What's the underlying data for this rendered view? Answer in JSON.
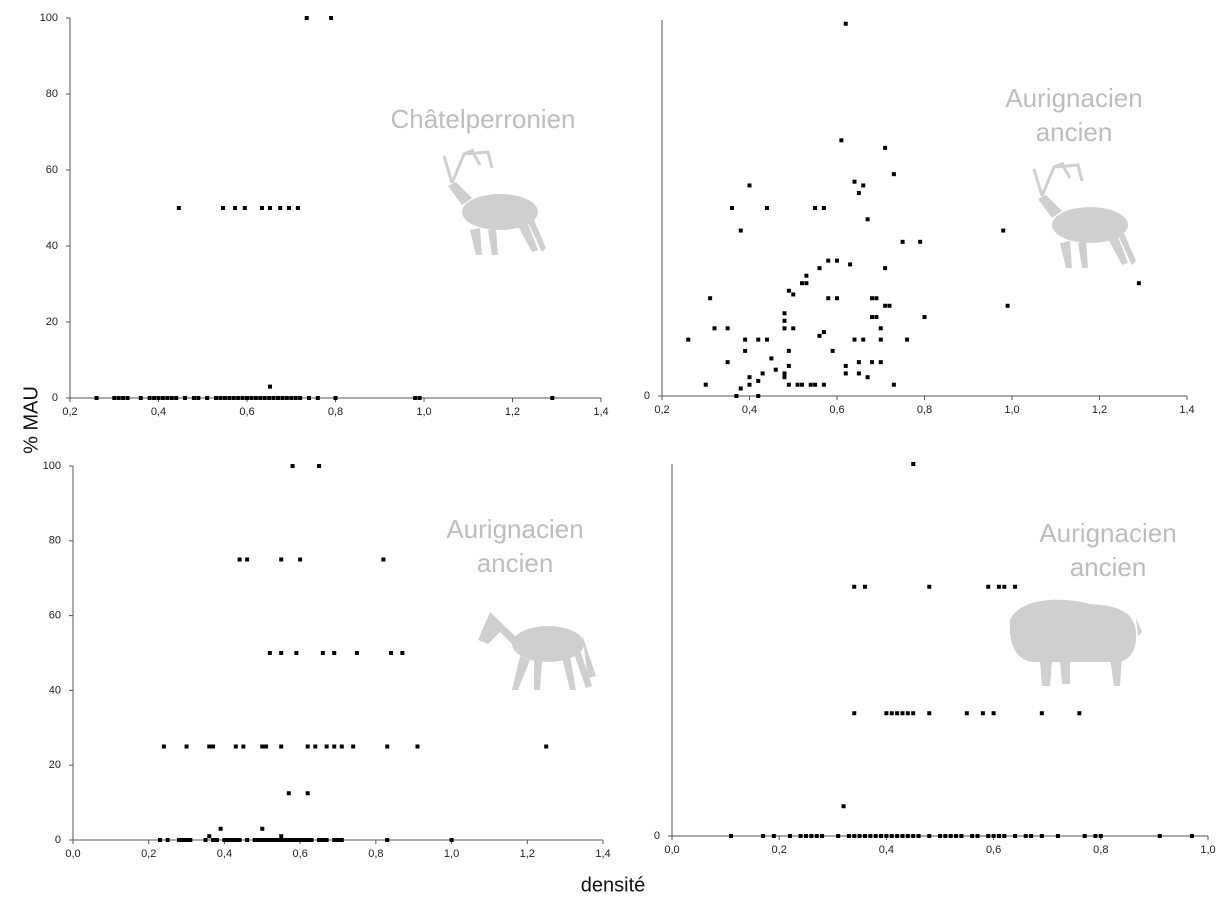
{
  "ylabel": "% MAU",
  "xlabel": "densité",
  "chart_data": [
    {
      "type": "scatter",
      "annotation_lines": [
        "Châtelperronien"
      ],
      "color": "#000000",
      "xlim": [
        0.2,
        1.4
      ],
      "xticks": [
        {
          "value": 0.2,
          "label": "0,2"
        },
        {
          "value": 0.4,
          "label": "0,4"
        },
        {
          "value": 0.6,
          "label": "0,6"
        },
        {
          "value": 0.8,
          "label": "0,8"
        },
        {
          "value": 1.0,
          "label": "1,0"
        },
        {
          "value": 1.2,
          "label": "1,2"
        },
        {
          "value": 1.4,
          "label": "1,4"
        }
      ],
      "ylim": [
        0,
        100
      ],
      "yticks": [
        0,
        20,
        40,
        60,
        80,
        100
      ],
      "x": [
        0.735,
        0.79,
        0.446,
        0.546,
        0.573,
        0.595,
        0.634,
        0.652,
        0.675,
        0.695,
        0.715,
        0.652,
        0.26,
        0.3,
        0.31,
        0.32,
        0.33,
        0.36,
        0.38,
        0.39,
        0.4,
        0.41,
        0.42,
        0.43,
        0.44,
        0.46,
        0.48,
        0.49,
        0.51,
        0.53,
        0.54,
        0.55,
        0.56,
        0.57,
        0.58,
        0.59,
        0.6,
        0.61,
        0.62,
        0.63,
        0.64,
        0.65,
        0.66,
        0.67,
        0.68,
        0.69,
        0.7,
        0.71,
        0.72,
        0.74,
        0.76,
        0.8,
        0.98,
        0.99,
        1.29
      ],
      "values": [
        100,
        100,
        50,
        50,
        50,
        50,
        50,
        50,
        50,
        50,
        50,
        3,
        0,
        0,
        0,
        0,
        0,
        0,
        0,
        0,
        0,
        0,
        0,
        0,
        0,
        0,
        0,
        0,
        0,
        0,
        0,
        0,
        0,
        0,
        0,
        0,
        0,
        0,
        0,
        0,
        0,
        0,
        0,
        0,
        0,
        0,
        0,
        0,
        0,
        0,
        0,
        0,
        0,
        0,
        0
      ]
    },
    {
      "type": "scatter",
      "annotation_lines": [
        "Aurignacien",
        "ancien"
      ],
      "color": "#000000",
      "xlim": [
        0.2,
        1.4
      ],
      "xticks": [
        {
          "value": 0.2,
          "label": "0,2"
        },
        {
          "value": 0.4,
          "label": "0,4"
        },
        {
          "value": 0.6,
          "label": "0,6"
        },
        {
          "value": 0.8,
          "label": "0,8"
        },
        {
          "value": 1.0,
          "label": "1,0"
        },
        {
          "value": 1.2,
          "label": "1,2"
        },
        {
          "value": 1.4,
          "label": "1,4"
        }
      ],
      "ylim": [
        0,
        100
      ],
      "yticks": [
        0
      ],
      "x": [
        0.26,
        0.3,
        0.31,
        0.32,
        0.35,
        0.35,
        0.36,
        0.37,
        0.38,
        0.38,
        0.39,
        0.39,
        0.4,
        0.4,
        0.4,
        0.42,
        0.42,
        0.42,
        0.43,
        0.44,
        0.44,
        0.45,
        0.46,
        0.48,
        0.48,
        0.48,
        0.48,
        0.48,
        0.49,
        0.49,
        0.49,
        0.49,
        0.5,
        0.5,
        0.51,
        0.52,
        0.52,
        0.53,
        0.53,
        0.54,
        0.55,
        0.55,
        0.56,
        0.56,
        0.57,
        0.57,
        0.57,
        0.58,
        0.58,
        0.59,
        0.6,
        0.6,
        0.61,
        0.62,
        0.62,
        0.62,
        0.63,
        0.64,
        0.64,
        0.65,
        0.65,
        0.65,
        0.66,
        0.66,
        0.67,
        0.67,
        0.68,
        0.68,
        0.68,
        0.69,
        0.69,
        0.7,
        0.7,
        0.7,
        0.71,
        0.71,
        0.71,
        0.72,
        0.73,
        0.73,
        0.75,
        0.76,
        0.79,
        0.8,
        0.98,
        0.99,
        1.29
      ],
      "values": [
        15,
        3,
        26,
        18,
        18,
        9,
        50,
        0,
        44,
        2,
        12,
        15,
        56,
        5,
        3,
        15,
        0,
        4,
        6,
        50,
        15,
        10,
        7,
        6,
        5,
        22,
        20,
        18,
        28,
        12,
        8,
        3,
        27,
        18,
        3,
        30,
        3,
        32,
        30,
        3,
        50,
        3,
        16,
        34,
        50,
        3,
        17,
        26,
        36,
        12,
        26,
        36,
        68,
        99,
        8,
        6,
        35,
        57,
        15,
        54,
        9,
        6,
        56,
        15,
        47,
        5,
        26,
        21,
        9,
        26,
        21,
        9,
        18,
        15,
        66,
        34,
        24,
        24,
        59,
        3,
        41,
        15,
        41,
        21,
        44,
        24,
        30
      ]
    },
    {
      "type": "scatter",
      "annotation_lines": [
        "Aurignacien",
        "ancien"
      ],
      "color": "#000000",
      "xlim": [
        0.0,
        1.4
      ],
      "xticks": [
        {
          "value": 0.0,
          "label": "0,0"
        },
        {
          "value": 0.2,
          "label": "0,2"
        },
        {
          "value": 0.4,
          "label": "0,4"
        },
        {
          "value": 0.6,
          "label": "0,6"
        },
        {
          "value": 0.8,
          "label": "0,8"
        },
        {
          "value": 1.0,
          "label": "1,0"
        },
        {
          "value": 1.2,
          "label": "1,2"
        },
        {
          "value": 1.4,
          "label": "1,4"
        }
      ],
      "ylim": [
        0,
        100
      ],
      "yticks": [
        0,
        20,
        40,
        60,
        80,
        100
      ],
      "x": [
        0.58,
        0.65,
        0.44,
        0.46,
        0.55,
        0.6,
        0.82,
        0.52,
        0.55,
        0.59,
        0.66,
        0.69,
        0.75,
        0.84,
        0.87,
        0.24,
        0.3,
        0.36,
        0.37,
        0.43,
        0.45,
        0.5,
        0.51,
        0.55,
        0.62,
        0.64,
        0.67,
        0.69,
        0.71,
        0.74,
        0.83,
        0.91,
        1.25,
        0.57,
        0.62,
        0.39,
        0.5,
        0.36,
        0.55,
        0.23,
        0.25,
        0.28,
        0.29,
        0.3,
        0.31,
        0.35,
        0.37,
        0.38,
        0.4,
        0.41,
        0.42,
        0.43,
        0.44,
        0.46,
        0.48,
        0.49,
        0.5,
        0.51,
        0.52,
        0.53,
        0.54,
        0.55,
        0.56,
        0.57,
        0.58,
        0.59,
        0.6,
        0.61,
        0.62,
        0.63,
        0.65,
        0.66,
        0.67,
        0.69,
        0.7,
        0.71,
        0.83,
        1.0
      ],
      "values": [
        100,
        100,
        75,
        75,
        75,
        75,
        75,
        50,
        50,
        50,
        50,
        50,
        50,
        50,
        50,
        25,
        25,
        25,
        25,
        25,
        25,
        25,
        25,
        25,
        25,
        25,
        25,
        25,
        25,
        25,
        25,
        25,
        25,
        12.5,
        12.5,
        3,
        3,
        1,
        1,
        0,
        0,
        0,
        0,
        0,
        0,
        0,
        0,
        0,
        0,
        0,
        0,
        0,
        0,
        0,
        0,
        0,
        0,
        0,
        0,
        0,
        0,
        0,
        0,
        0,
        0,
        0,
        0,
        0,
        0,
        0,
        0,
        0,
        0,
        0,
        0,
        0,
        0,
        0
      ]
    },
    {
      "type": "scatter",
      "annotation_lines": [
        "Aurignacien",
        "ancien"
      ],
      "color": "#000000",
      "xlim": [
        0.0,
        1.0
      ],
      "xticks": [
        {
          "value": 0.0,
          "label": "0,0"
        },
        {
          "value": 0.2,
          "label": "0,2"
        },
        {
          "value": 0.4,
          "label": "0,4"
        },
        {
          "value": 0.6,
          "label": "0,6"
        },
        {
          "value": 0.8,
          "label": "0,8"
        },
        {
          "value": 1.0,
          "label": "1,0"
        }
      ],
      "ylim": [
        0,
        100
      ],
      "yticks": [
        0
      ],
      "x": [
        0.45,
        0.34,
        0.36,
        0.48,
        0.59,
        0.61,
        0.62,
        0.64,
        0.34,
        0.4,
        0.41,
        0.42,
        0.43,
        0.44,
        0.45,
        0.48,
        0.55,
        0.58,
        0.6,
        0.69,
        0.76,
        0.32,
        0.11,
        0.17,
        0.19,
        0.22,
        0.24,
        0.25,
        0.26,
        0.27,
        0.28,
        0.31,
        0.33,
        0.34,
        0.35,
        0.36,
        0.37,
        0.38,
        0.39,
        0.4,
        0.41,
        0.42,
        0.43,
        0.44,
        0.45,
        0.46,
        0.48,
        0.5,
        0.51,
        0.52,
        0.53,
        0.54,
        0.56,
        0.57,
        0.59,
        0.6,
        0.61,
        0.62,
        0.64,
        0.66,
        0.67,
        0.69,
        0.72,
        0.77,
        0.79,
        0.8,
        0.91,
        0.97
      ],
      "values": [
        100,
        67,
        67,
        67,
        67,
        67,
        67,
        67,
        33,
        33,
        33,
        33,
        33,
        33,
        33,
        33,
        33,
        33,
        33,
        33,
        33,
        8,
        0,
        0,
        0,
        0,
        0,
        0,
        0,
        0,
        0,
        0,
        0,
        0,
        0,
        0,
        0,
        0,
        0,
        0,
        0,
        0,
        0,
        0,
        0,
        0,
        0,
        0,
        0,
        0,
        0,
        0,
        0,
        0,
        0,
        0,
        0,
        0,
        0,
        0,
        0,
        0,
        0,
        0,
        0,
        0,
        0,
        0
      ]
    }
  ]
}
